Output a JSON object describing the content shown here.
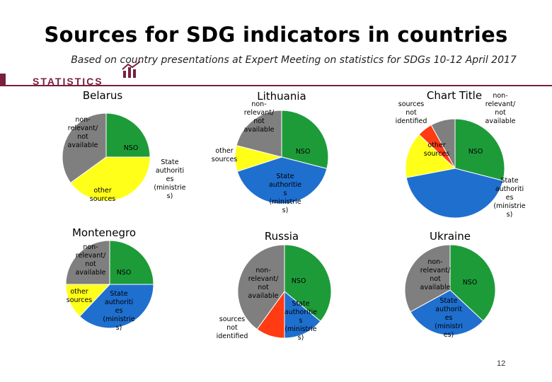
{
  "header": {
    "title": "Sources for SDG indicators in countries",
    "subtitle": "Based on country presentations at Expert Meeting on statistics for SDGs 10-12 April 2017",
    "brand": "STATISTICS"
  },
  "page_number": "12",
  "colors": {
    "NSO": "#1e9b39",
    "State authorities (ministries)": "#1f6fcf",
    "other sources": "#ffff1a",
    "non-relevant/ not available": "#7f7f7f",
    "sources not identified": "#ff3b14",
    "brand": "#7a1f3d"
  },
  "chart_data": [
    {
      "type": "pie",
      "title": "Belarus",
      "slices": [
        {
          "name": "NSO",
          "value": 25,
          "label": [
            "NSO"
          ]
        },
        {
          "name": "State authorities (ministries)",
          "value": 0,
          "label": [
            "State",
            "authoriti",
            "es",
            "(ministrie",
            "s)"
          ]
        },
        {
          "name": "other sources",
          "value": 40,
          "label": [
            "other",
            "sources"
          ]
        },
        {
          "name": "non-relevant/ not available",
          "value": 35,
          "label": [
            "non-",
            "relevant/",
            "not",
            "available"
          ]
        }
      ]
    },
    {
      "type": "pie",
      "title": "Lithuania",
      "slices": [
        {
          "name": "NSO",
          "value": 29,
          "label": [
            "NSO"
          ]
        },
        {
          "name": "State authorities (ministries)",
          "value": 41,
          "label": [
            "State",
            "authoritie",
            "s",
            "(ministrie",
            "s)"
          ]
        },
        {
          "name": "other sources",
          "value": 9,
          "label": [
            "other",
            "sources"
          ]
        },
        {
          "name": "non-relevant/ not available",
          "value": 21,
          "label": [
            "non-",
            "relevant/",
            "not",
            "available"
          ]
        }
      ]
    },
    {
      "type": "pie",
      "title": "Chart Title",
      "slices": [
        {
          "name": "NSO",
          "value": 29,
          "label": [
            "NSO"
          ]
        },
        {
          "name": "State authorities (ministries)",
          "value": 43,
          "label": [
            "State",
            "authoriti",
            "es",
            "(ministrie",
            "s)"
          ]
        },
        {
          "name": "other sources",
          "value": 15,
          "label": [
            "other",
            "sources"
          ]
        },
        {
          "name": "sources not identified",
          "value": 5,
          "label": [
            "sources",
            "not",
            "identified"
          ]
        },
        {
          "name": "non-relevant/ not available",
          "value": 8,
          "label": [
            "non-",
            "relevant/",
            "not",
            "available"
          ]
        }
      ]
    },
    {
      "type": "pie",
      "title": "Montenegro",
      "slices": [
        {
          "name": "NSO",
          "value": 25,
          "label": [
            "NSO"
          ]
        },
        {
          "name": "State authorities (ministries)",
          "value": 37,
          "label": [
            "State",
            "authoriti",
            "es",
            "(ministrie",
            "s)"
          ]
        },
        {
          "name": "other sources",
          "value": 13,
          "label": [
            "other",
            "sources"
          ]
        },
        {
          "name": "non-relevant/ not available",
          "value": 25,
          "label": [
            "non-",
            "relevant/",
            "not",
            "available"
          ]
        }
      ]
    },
    {
      "type": "pie",
      "title": "Russia",
      "slices": [
        {
          "name": "NSO",
          "value": 36,
          "label": [
            "NSO"
          ]
        },
        {
          "name": "State authorities (ministries)",
          "value": 14,
          "label": [
            "State",
            "authoritie",
            "s",
            "(ministrie",
            "s)"
          ]
        },
        {
          "name": "sources not identified",
          "value": 10,
          "label": [
            "sources",
            "not",
            "identified"
          ]
        },
        {
          "name": "non-relevant/ not available",
          "value": 40,
          "label": [
            "non-",
            "relevant/",
            "not",
            "available"
          ]
        }
      ]
    },
    {
      "type": "pie",
      "title": "Ukraine",
      "slices": [
        {
          "name": "NSO",
          "value": 37,
          "label": [
            "NSO"
          ]
        },
        {
          "name": "State authorities (ministries)",
          "value": 30,
          "label": [
            "State",
            "authorit",
            "es",
            "(ministri",
            "es)"
          ]
        },
        {
          "name": "non-relevant/ not available",
          "value": 33,
          "label": [
            "non-",
            "relevant/",
            "not",
            "available"
          ]
        }
      ]
    }
  ]
}
